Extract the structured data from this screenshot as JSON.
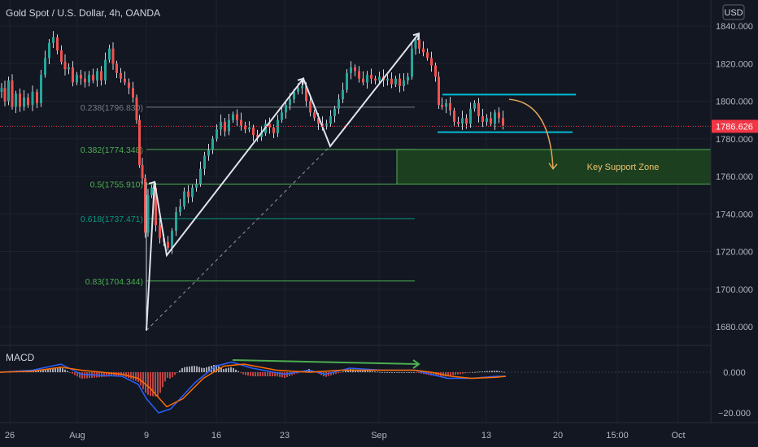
{
  "header": {
    "symbol_title": "Gold Spot / U.S. Dollar, 4h, OANDA",
    "currency_button": "USD"
  },
  "colors": {
    "background": "#131722",
    "text": "#b2b5be",
    "grid": "#1e222d",
    "candle_up": "#26a69a",
    "candle_down": "#ef5350",
    "wick": "#d1d4dc",
    "fib_gray": "#787b86",
    "fib_green": "#4caf50",
    "fib_teal": "#089981",
    "cyan": "#00bcd4",
    "zone_fill": "#1e4620",
    "zone_text": "#f0c36d",
    "price_tag": "#f23645",
    "arrow_yellow": "#e0a85a",
    "macd_line": "#2962ff",
    "signal_line": "#ff6d00",
    "divergence": "#4caf50"
  },
  "chart_data": [
    {
      "type": "candlestick",
      "title": "Gold Spot / U.S. Dollar, 4h, OANDA",
      "ylim": [
        1668,
        1846
      ],
      "y_ticks": [
        "1840.000",
        "1820.000",
        "1800.000",
        "1780.000",
        "1760.000",
        "1740.000",
        "1720.000",
        "1700.000",
        "1680.000"
      ],
      "x_ticks": [
        "26",
        "Aug",
        "9",
        "16",
        "23",
        "Sep",
        "13",
        "20",
        "15:00",
        "Oct"
      ],
      "last_price": "1786.626",
      "price_path": [
        [
          0,
          1805
        ],
        [
          4,
          1807
        ],
        [
          8,
          1800
        ],
        [
          13,
          1811
        ],
        [
          17,
          1797
        ],
        [
          22,
          1804
        ],
        [
          27,
          1797
        ],
        [
          32,
          1802
        ],
        [
          37,
          1798
        ],
        [
          43,
          1805
        ],
        [
          48,
          1799
        ],
        [
          53,
          1814
        ],
        [
          58,
          1823
        ],
        [
          63,
          1831
        ],
        [
          68,
          1834
        ],
        [
          73,
          1827
        ],
        [
          78,
          1821
        ],
        [
          82,
          1817
        ],
        [
          87,
          1818
        ],
        [
          92,
          1810
        ],
        [
          97,
          1814
        ],
        [
          102,
          1812
        ],
        [
          107,
          1810
        ],
        [
          112,
          1814
        ],
        [
          117,
          1811
        ],
        [
          122,
          1816
        ],
        [
          127,
          1811
        ],
        [
          132,
          1822
        ],
        [
          137,
          1828
        ],
        [
          141,
          1820
        ],
        [
          146,
          1815
        ],
        [
          151,
          1812
        ],
        [
          156,
          1810
        ],
        [
          161,
          1807
        ],
        [
          166,
          1802
        ],
        [
          170,
          1790
        ],
        [
          173,
          1766
        ],
        [
          177,
          1759
        ],
        [
          180,
          1730
        ],
        [
          184,
          1750
        ],
        [
          189,
          1754
        ],
        [
          194,
          1734
        ],
        [
          199,
          1727
        ],
        [
          204,
          1725
        ],
        [
          209,
          1722
        ],
        [
          214,
          1731
        ],
        [
          219,
          1741
        ],
        [
          224,
          1744
        ],
        [
          229,
          1752
        ],
        [
          234,
          1749
        ],
        [
          239,
          1754
        ],
        [
          244,
          1756
        ],
        [
          249,
          1764
        ],
        [
          254,
          1771
        ],
        [
          259,
          1774
        ],
        [
          264,
          1780
        ],
        [
          269,
          1785
        ],
        [
          274,
          1789
        ],
        [
          279,
          1784
        ],
        [
          284,
          1790
        ],
        [
          289,
          1793
        ],
        [
          294,
          1790
        ],
        [
          299,
          1787
        ],
        [
          304,
          1785
        ],
        [
          309,
          1786
        ],
        [
          314,
          1782
        ],
        [
          319,
          1781
        ],
        [
          324,
          1783
        ],
        [
          329,
          1788
        ],
        [
          334,
          1786
        ],
        [
          339,
          1783
        ],
        [
          344,
          1790
        ],
        [
          349,
          1794
        ],
        [
          354,
          1798
        ],
        [
          359,
          1801
        ],
        [
          364,
          1805
        ],
        [
          369,
          1807
        ],
        [
          374,
          1808
        ],
        [
          379,
          1800
        ],
        [
          384,
          1794
        ],
        [
          389,
          1791
        ],
        [
          394,
          1788
        ],
        [
          399,
          1787
        ],
        [
          404,
          1788
        ],
        [
          409,
          1792
        ],
        [
          414,
          1796
        ],
        [
          419,
          1801
        ],
        [
          424,
          1806
        ],
        [
          429,
          1815
        ],
        [
          434,
          1818
        ],
        [
          439,
          1816
        ],
        [
          444,
          1812
        ],
        [
          449,
          1810
        ],
        [
          454,
          1814
        ],
        [
          459,
          1812
        ],
        [
          464,
          1811
        ],
        [
          469,
          1813
        ],
        [
          474,
          1811
        ],
        [
          479,
          1812
        ],
        [
          484,
          1809
        ],
        [
          489,
          1812
        ],
        [
          494,
          1808
        ],
        [
          499,
          1811
        ],
        [
          504,
          1813
        ],
        [
          509,
          1828
        ],
        [
          513,
          1833
        ],
        [
          518,
          1828
        ],
        [
          523,
          1826
        ],
        [
          528,
          1823
        ],
        [
          533,
          1819
        ],
        [
          538,
          1813
        ],
        [
          541,
          1798
        ],
        [
          546,
          1797
        ],
        [
          551,
          1799
        ],
        [
          556,
          1795
        ],
        [
          561,
          1789
        ],
        [
          566,
          1788
        ],
        [
          571,
          1791
        ],
        [
          576,
          1788
        ],
        [
          581,
          1796
        ],
        [
          586,
          1799
        ],
        [
          591,
          1792
        ],
        [
          596,
          1789
        ],
        [
          601,
          1791
        ],
        [
          606,
          1788
        ],
        [
          611,
          1794
        ],
        [
          616,
          1791
        ],
        [
          621,
          1787
        ]
      ],
      "fib_levels": [
        {
          "label": "0.238(1796.830)",
          "price": 1796.8,
          "x_end": 510,
          "color": "fib_gray"
        },
        {
          "label": "0.382(1774.348)",
          "price": 1774.3,
          "x_end": 510,
          "color": "fib_green"
        },
        {
          "label": "0.5(1755.910)",
          "price": 1755.9,
          "x_end": 510,
          "color": "fib_green"
        },
        {
          "label": "0.618(1737.471)",
          "price": 1737.5,
          "x_end": 510,
          "color": "fib_teal"
        },
        {
          "label": "0.83(1704.344)",
          "price": 1704.3,
          "x_end": 510,
          "color": "fib_green"
        }
      ],
      "annotations": {
        "key_support_zone": {
          "label": "Key Support Zone",
          "price_top": 1774.3,
          "price_bottom": 1755.9,
          "x_start": 488
        },
        "channel_lines": [
          {
            "price": 1803.5,
            "x_start": 544,
            "x_end": 708
          },
          {
            "price": 1783.5,
            "x_start": 538,
            "x_end": 704
          }
        ],
        "impulse_lines": [
          [
            [
              180,
              1678
            ],
            [
              190,
              1757
            ],
            [
              205,
              1718
            ],
            [
              373,
              1812
            ],
            [
              406,
              1776
            ],
            [
              515,
              1836
            ]
          ]
        ],
        "dashed_trend": [
          [
            180,
            1678
          ],
          [
            406,
            1776
          ]
        ],
        "fib_vertical": {
          "x": 180,
          "price_top": 1757,
          "price_bottom": 1678
        },
        "projection_arrow": {
          "from": [
            626,
            1801
          ],
          "to": [
            680,
            1764
          ]
        }
      }
    },
    {
      "type": "line",
      "title": "MACD",
      "ylim": [
        -22,
        8
      ],
      "y_ticks": [
        "0.000",
        "−20.000"
      ],
      "series": [
        {
          "name": "",
          "color": "macd_line",
          "points": [
            [
              0,
              0
            ],
            [
              40,
              1
            ],
            [
              75,
              4
            ],
            [
              100,
              -1
            ],
            [
              150,
              -2
            ],
            [
              170,
              -6
            ],
            [
              180,
              -13
            ],
            [
              195,
              -20
            ],
            [
              210,
              -18
            ],
            [
              240,
              -5
            ],
            [
              265,
              3
            ],
            [
              285,
              5
            ],
            [
              310,
              2
            ],
            [
              350,
              -1
            ],
            [
              380,
              1
            ],
            [
              400,
              -1
            ],
            [
              430,
              2
            ],
            [
              470,
              1
            ],
            [
              510,
              1
            ],
            [
              530,
              -1
            ],
            [
              550,
              -3
            ],
            [
              580,
              -3
            ],
            [
              610,
              -2
            ],
            [
              622,
              -2
            ]
          ]
        },
        {
          "name": "",
          "color": "signal_line",
          "points": [
            [
              0,
              0
            ],
            [
              40,
              0.5
            ],
            [
              75,
              2.5
            ],
            [
              100,
              1
            ],
            [
              150,
              -1
            ],
            [
              170,
              -3
            ],
            [
              185,
              -8
            ],
            [
              205,
              -17
            ],
            [
              225,
              -13
            ],
            [
              250,
              -3
            ],
            [
              275,
              3
            ],
            [
              300,
              4
            ],
            [
              340,
              1
            ],
            [
              380,
              0
            ],
            [
              420,
              1
            ],
            [
              470,
              1
            ],
            [
              510,
              1
            ],
            [
              530,
              0
            ],
            [
              555,
              -2
            ],
            [
              580,
              -3
            ],
            [
              610,
              -2.5
            ],
            [
              622,
              -2
            ]
          ]
        }
      ],
      "divergence_line": [
        [
          286,
          6
        ],
        [
          515,
          4
        ]
      ]
    }
  ]
}
